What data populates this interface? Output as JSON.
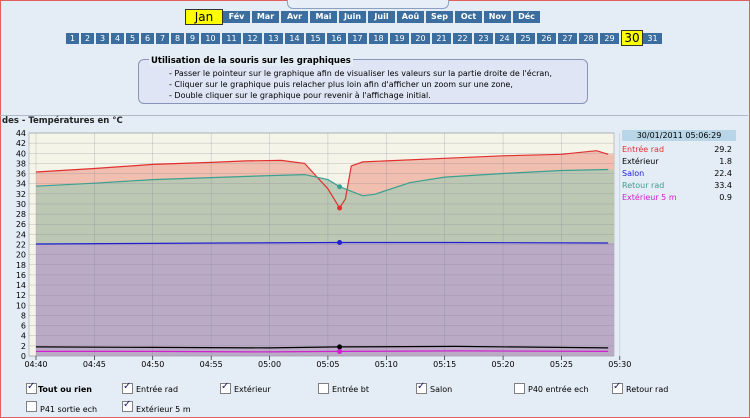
{
  "months": [
    "Jan",
    "Fév",
    "Mar",
    "Avr",
    "Mai",
    "Juin",
    "Juil",
    "Aoû",
    "Sep",
    "Oct",
    "Nov",
    "Déc"
  ],
  "selected_month": "Jan",
  "days": [
    "1",
    "2",
    "3",
    "4",
    "5",
    "6",
    "7",
    "8",
    "9",
    "10",
    "11",
    "12",
    "13",
    "14",
    "15",
    "16",
    "17",
    "18",
    "19",
    "20",
    "21",
    "22",
    "23",
    "24",
    "25",
    "26",
    "27",
    "28",
    "29",
    "30",
    "31"
  ],
  "selected_day": "30",
  "help": {
    "title": "Utilisation de la souris sur les graphiques",
    "lines": [
      "- Passer le pointeur sur le graphique afin de visualiser les valeurs sur la partie droite de l'écran,",
      "- Cliquer sur le graphique puis relacher plus loin afin d'afficher un zoom sur une zone,",
      "- Double cliquer sur le graphique pour revenir à l'affichage initial."
    ]
  },
  "panel_title": "des - Températures en °C",
  "tooltip": {
    "timestamp": "30/01/2011 05:06:29",
    "rows": [
      {
        "name": "Entrée rad",
        "value": "29.2",
        "color": "#e03030"
      },
      {
        "name": "Extérieur",
        "value": "1.8",
        "color": "#000000"
      },
      {
        "name": "Salon",
        "value": "22.4",
        "color": "#2020d0"
      },
      {
        "name": "Retour rad",
        "value": "33.4",
        "color": "#3aa090"
      },
      {
        "name": "Extérieur 5 m",
        "value": "0.9",
        "color": "#d020d0"
      }
    ]
  },
  "checkboxes": [
    {
      "label": "Tout ou rien",
      "checked": true,
      "bold": true
    },
    {
      "label": "Entrée rad",
      "checked": true
    },
    {
      "label": "Extérieur",
      "checked": true
    },
    {
      "label": "Entrée bt",
      "checked": false
    },
    {
      "label": "Salon",
      "checked": true
    },
    {
      "label": "P40 entrée ech",
      "checked": false
    },
    {
      "label": "Retour rad",
      "checked": true
    },
    {
      "label": "P41 sortie ech",
      "checked": false
    },
    {
      "label": "Extérieur 5 m",
      "checked": true
    }
  ],
  "chart_data": {
    "type": "area",
    "x": [
      "04:40",
      "04:45",
      "04:50",
      "04:55",
      "05:00",
      "05:05",
      "05:10",
      "05:15",
      "05:20",
      "05:25",
      "05:30"
    ],
    "ylim": [
      0,
      44
    ],
    "yticks": [
      0,
      2,
      4,
      6,
      8,
      10,
      12,
      14,
      16,
      18,
      20,
      22,
      24,
      26,
      28,
      30,
      32,
      34,
      36,
      38,
      40,
      42,
      44
    ],
    "grid": true,
    "series": [
      {
        "name": "Entrée rad",
        "color": "#e03030",
        "fill": "#f0b9a8",
        "points": [
          [
            0,
            36.3
          ],
          [
            5,
            37.0
          ],
          [
            10,
            37.8
          ],
          [
            15,
            38.2
          ],
          [
            18,
            38.5
          ],
          [
            21,
            38.6
          ],
          [
            23,
            38.0
          ],
          [
            24,
            35.5
          ],
          [
            25,
            33.0
          ],
          [
            26,
            29.2
          ],
          [
            26.5,
            31
          ],
          [
            27,
            37.5
          ],
          [
            28,
            38.3
          ],
          [
            30,
            38.5
          ],
          [
            35,
            39.0
          ],
          [
            40,
            39.5
          ],
          [
            45,
            39.8
          ],
          [
            48,
            40.5
          ],
          [
            49,
            39.8
          ]
        ]
      },
      {
        "name": "Retour rad",
        "color": "#3aa090",
        "fill": "#b6c9b5",
        "points": [
          [
            0,
            33.5
          ],
          [
            5,
            34.1
          ],
          [
            10,
            34.8
          ],
          [
            15,
            35.2
          ],
          [
            20,
            35.6
          ],
          [
            23,
            35.8
          ],
          [
            25,
            34.8
          ],
          [
            26,
            33.4
          ],
          [
            27,
            32.5
          ],
          [
            28,
            31.6
          ],
          [
            29,
            31.9
          ],
          [
            32,
            34.2
          ],
          [
            35,
            35.3
          ],
          [
            40,
            36.0
          ],
          [
            45,
            36.6
          ],
          [
            49,
            36.8
          ]
        ]
      },
      {
        "name": "Salon",
        "color": "#2020d0",
        "fill": "#b9a6c6",
        "points": [
          [
            0,
            22.1
          ],
          [
            8,
            22.2
          ],
          [
            16,
            22.3
          ],
          [
            26,
            22.4
          ],
          [
            36,
            22.4
          ],
          [
            49,
            22.3
          ]
        ]
      },
      {
        "name": "Extérieur",
        "color": "#000000",
        "fill": "#b9a6c6",
        "points": [
          [
            0,
            1.8
          ],
          [
            10,
            1.7
          ],
          [
            20,
            1.6
          ],
          [
            26,
            1.8
          ],
          [
            36,
            1.9
          ],
          [
            49,
            1.6
          ]
        ]
      },
      {
        "name": "Extérieur 5 m",
        "color": "#d020d0",
        "fill": "#b9a6c6",
        "points": [
          [
            0,
            0.9
          ],
          [
            10,
            0.9
          ],
          [
            20,
            0.8
          ],
          [
            26,
            0.9
          ],
          [
            36,
            1.0
          ],
          [
            49,
            0.9
          ]
        ]
      }
    ],
    "x_unit": "minutes after 04:40",
    "cursor_x": 26
  }
}
